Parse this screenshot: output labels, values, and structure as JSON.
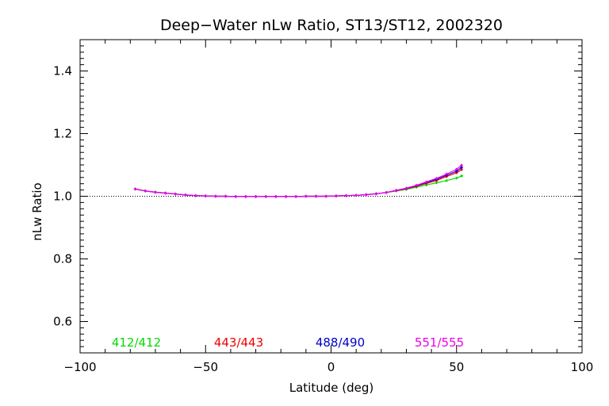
{
  "chart_data": {
    "type": "line",
    "title": "Deep−Water nLw Ratio, ST13/ST12, 2002320",
    "xlabel": "Latitude (deg)",
    "ylabel": "nLw Ratio",
    "xlim": [
      -100,
      100
    ],
    "ylim": [
      0.5,
      1.5
    ],
    "xticks": [
      -100,
      -50,
      0,
      50,
      100
    ],
    "xtick_labels": [
      "−100",
      "−50",
      "0",
      "50",
      "100"
    ],
    "yticks": [
      0.6,
      0.8,
      1.0,
      1.2,
      1.4
    ],
    "ytick_labels": [
      "0.6",
      "0.8",
      "1.0",
      "1.2",
      "1.4"
    ],
    "reference_line": 1.0,
    "grid": false,
    "x": [
      -78,
      -74,
      -70,
      -66,
      -62,
      -58,
      -54,
      -50,
      -46,
      -42,
      -38,
      -34,
      -30,
      -26,
      -22,
      -18,
      -14,
      -10,
      -6,
      -2,
      2,
      6,
      10,
      14,
      18,
      22,
      26,
      30,
      34,
      38,
      42,
      46,
      50,
      52
    ],
    "series": [
      {
        "name": "412/412",
        "color": "#00dd00",
        "values": [
          1.023,
          1.017,
          1.013,
          1.01,
          1.007,
          1.004,
          1.002,
          1.001,
          1.0,
          1.0,
          0.999,
          0.999,
          0.999,
          0.999,
          0.999,
          0.999,
          0.999,
          1.0,
          1.0,
          1.0,
          1.001,
          1.002,
          1.003,
          1.005,
          1.008,
          1.012,
          1.017,
          1.022,
          1.029,
          1.036,
          1.043,
          1.05,
          1.058,
          1.065
        ]
      },
      {
        "name": "443/443",
        "color": "#ee0000",
        "values": [
          1.023,
          1.017,
          1.013,
          1.01,
          1.007,
          1.004,
          1.002,
          1.001,
          1.0,
          1.0,
          0.999,
          0.999,
          0.999,
          0.999,
          0.999,
          0.999,
          0.999,
          1.0,
          1.0,
          1.0,
          1.001,
          1.002,
          1.003,
          1.005,
          1.008,
          1.012,
          1.018,
          1.024,
          1.032,
          1.041,
          1.05,
          1.063,
          1.075,
          1.085
        ]
      },
      {
        "name": "488/490",
        "color": "#0000cc",
        "values": [
          1.023,
          1.017,
          1.013,
          1.01,
          1.007,
          1.004,
          1.002,
          1.001,
          1.0,
          1.0,
          0.999,
          0.999,
          0.999,
          0.999,
          0.999,
          0.999,
          0.999,
          1.0,
          1.0,
          1.0,
          1.001,
          1.002,
          1.003,
          1.005,
          1.008,
          1.012,
          1.019,
          1.025,
          1.034,
          1.044,
          1.054,
          1.067,
          1.08,
          1.092
        ]
      },
      {
        "name": "551/555",
        "color": "#ee00ee",
        "values": [
          1.023,
          1.017,
          1.013,
          1.01,
          1.007,
          1.004,
          1.002,
          1.001,
          1.0,
          1.0,
          0.999,
          0.999,
          0.999,
          0.999,
          0.999,
          0.999,
          0.999,
          1.0,
          1.0,
          1.0,
          1.001,
          1.002,
          1.003,
          1.005,
          1.008,
          1.012,
          1.019,
          1.026,
          1.035,
          1.046,
          1.057,
          1.071,
          1.086,
          1.099
        ]
      }
    ]
  }
}
